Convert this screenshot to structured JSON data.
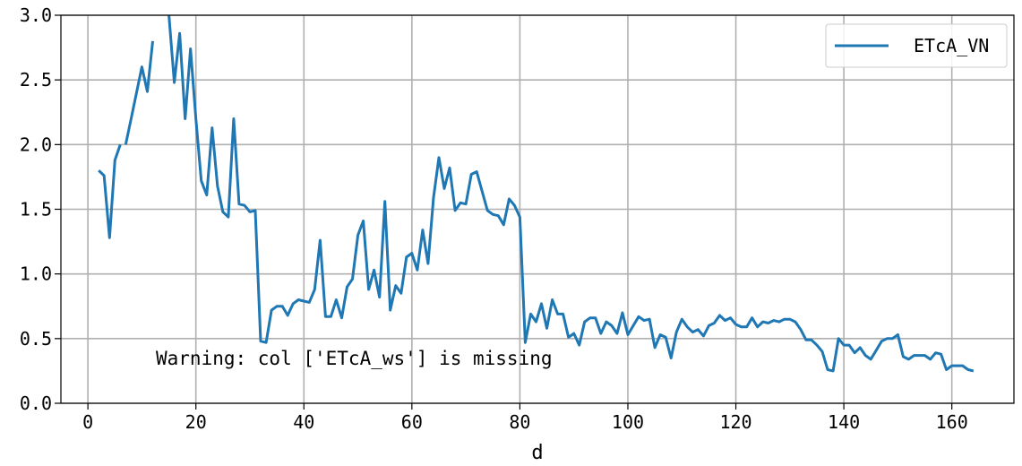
{
  "chart_data": {
    "type": "line",
    "title": "",
    "xlabel": "d",
    "ylabel": "",
    "xlim": [
      -5,
      171.5
    ],
    "ylim": [
      0.0,
      3.0
    ],
    "xticks": [
      0,
      20,
      40,
      60,
      80,
      100,
      120,
      140,
      160
    ],
    "xtick_labels": [
      "0",
      "20",
      "40",
      "60",
      "80",
      "100",
      "120",
      "140",
      "160"
    ],
    "yticks": [
      0.0,
      0.5,
      1.0,
      1.5,
      2.0,
      2.5,
      3.0
    ],
    "ytick_labels": [
      "0.0",
      "0.5",
      "1.0",
      "1.5",
      "2.0",
      "2.5",
      "3.0"
    ],
    "grid": true,
    "legend_position": "top-right",
    "annotation": "Warning: col ['ETcA_ws'] is missing",
    "series": [
      {
        "name": "ETcA_VN",
        "color": "#1f77b4",
        "segments": [
          {
            "x": [
              2,
              3,
              4,
              5,
              6
            ],
            "y": [
              1.8,
              1.76,
              1.28,
              1.88,
              2.0
            ]
          },
          {
            "x": [
              7,
              8,
              9,
              10,
              11,
              12
            ],
            "y": [
              2.0,
              2.2,
              2.4,
              2.6,
              2.41,
              2.8
            ]
          },
          {
            "x": [
              15,
              16,
              17,
              18,
              19,
              20,
              21,
              22,
              23,
              24,
              25,
              26,
              27,
              28,
              29,
              30,
              31,
              32,
              33,
              34,
              35,
              36,
              37,
              38,
              39,
              40,
              41,
              42,
              43,
              44,
              45,
              46,
              47,
              48,
              49,
              50,
              51,
              52,
              53,
              54,
              55,
              56,
              57,
              58,
              59,
              60,
              61,
              62,
              63,
              64,
              65,
              66,
              67,
              68,
              69,
              70,
              71,
              72,
              73,
              74,
              75,
              76,
              77,
              78,
              79,
              80,
              81,
              82,
              83,
              84,
              85,
              86,
              87,
              88,
              89,
              90,
              91,
              92,
              93,
              94,
              95,
              96,
              97,
              98,
              99,
              100,
              101,
              102,
              103,
              104,
              105,
              106,
              107,
              108,
              109,
              110,
              111,
              112,
              113,
              114,
              115,
              116,
              117,
              118,
              119,
              120,
              121,
              122,
              123,
              124,
              125,
              126,
              127,
              128,
              129,
              130,
              131,
              132,
              133,
              134,
              135,
              136,
              137,
              138,
              139,
              140,
              141,
              142,
              143,
              144,
              145,
              146,
              147,
              148,
              149,
              150,
              151,
              152,
              153,
              154,
              155,
              156,
              157,
              158,
              159,
              160,
              161,
              162,
              163,
              164
            ],
            "y": [
              3.0,
              2.48,
              2.86,
              2.2,
              2.74,
              2.2,
              1.72,
              1.61,
              2.13,
              1.68,
              1.48,
              1.44,
              2.2,
              1.54,
              1.53,
              1.48,
              1.49,
              0.48,
              0.47,
              0.72,
              0.75,
              0.75,
              0.68,
              0.77,
              0.8,
              0.79,
              0.78,
              0.88,
              1.26,
              0.67,
              0.67,
              0.8,
              0.66,
              0.9,
              0.96,
              1.3,
              1.41,
              0.88,
              1.03,
              0.82,
              1.56,
              0.72,
              0.91,
              0.85,
              1.13,
              1.16,
              1.03,
              1.34,
              1.08,
              1.59,
              1.9,
              1.66,
              1.82,
              1.49,
              1.55,
              1.54,
              1.77,
              1.79,
              1.64,
              1.49,
              1.46,
              1.45,
              1.38,
              1.58,
              1.53,
              1.44,
              0.47,
              0.69,
              0.63,
              0.77,
              0.58,
              0.8,
              0.69,
              0.69,
              0.51,
              0.54,
              0.45,
              0.63,
              0.66,
              0.66,
              0.54,
              0.63,
              0.6,
              0.54,
              0.7,
              0.53,
              0.6,
              0.67,
              0.64,
              0.65,
              0.43,
              0.53,
              0.51,
              0.35,
              0.55,
              0.65,
              0.59,
              0.55,
              0.57,
              0.52,
              0.6,
              0.62,
              0.68,
              0.64,
              0.66,
              0.61,
              0.59,
              0.59,
              0.66,
              0.59,
              0.63,
              0.62,
              0.64,
              0.63,
              0.65,
              0.65,
              0.63,
              0.57,
              0.49,
              0.49,
              0.45,
              0.4,
              0.26,
              0.25,
              0.5,
              0.45,
              0.45,
              0.39,
              0.43,
              0.37,
              0.34,
              0.41,
              0.48,
              0.5,
              0.5,
              0.53,
              0.36,
              0.34,
              0.37,
              0.37,
              0.37,
              0.34,
              0.39,
              0.38,
              0.26,
              0.29,
              0.29,
              0.29,
              0.26,
              0.25
            ]
          }
        ]
      }
    ]
  }
}
